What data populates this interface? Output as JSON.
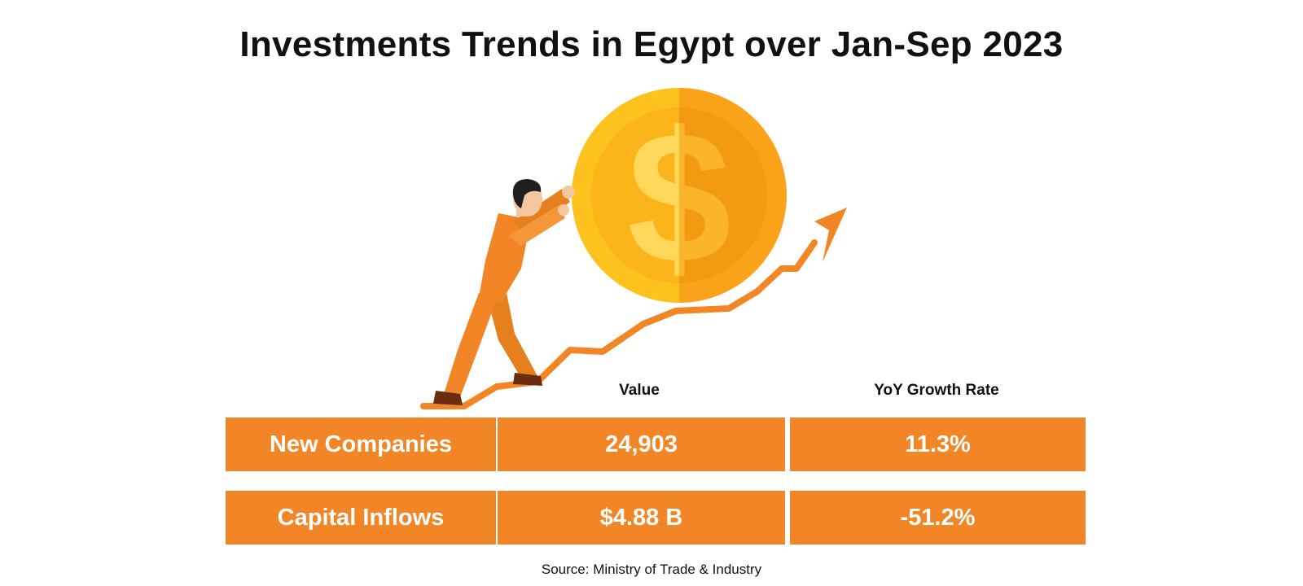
{
  "title": "Investments Trends in Egypt over Jan-Sep 2023",
  "colors": {
    "accent": "#F28627",
    "coin_light": "#FDC21E",
    "coin_dark": "#F9A21A",
    "text": "#111111"
  },
  "chart_data": {
    "type": "table",
    "title": "Investments Trends in Egypt over Jan-Sep 2023",
    "columns": [
      "Value",
      "YoY Growth Rate"
    ],
    "rows": [
      {
        "label": "New Companies",
        "value": "24,903",
        "growth": "11.3%"
      },
      {
        "label": "Capital Inflows",
        "value": "$4.88 B",
        "growth": "-51.2%"
      }
    ],
    "source": "Source: Ministry of Trade & Industry"
  },
  "illustration": {
    "coin_symbol": "$",
    "icons": [
      "person-pushing-icon",
      "dollar-coin-icon",
      "trend-arrow-icon"
    ]
  }
}
